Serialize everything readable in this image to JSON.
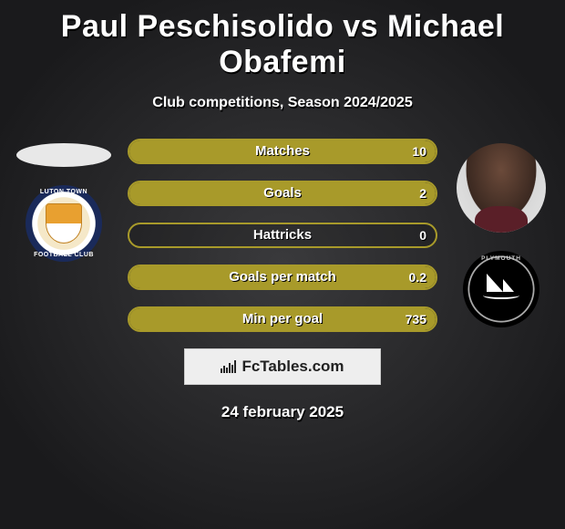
{
  "title": "Paul Peschisolido vs Michael Obafemi",
  "subtitle": "Club competitions, Season 2024/2025",
  "accent_color": "#a89a2a",
  "player_left": {
    "name": "Paul Peschisolido",
    "photo_style": "silhouette-oval",
    "club": {
      "name": "Luton Town Football Club",
      "badge_style": "luton",
      "ring_text_top": "LUTON TOWN",
      "ring_text_bottom": "FOOTBALL CLUB"
    }
  },
  "player_right": {
    "name": "Michael Obafemi",
    "photo_style": "photo-circle",
    "club": {
      "name": "Plymouth",
      "badge_style": "plymouth",
      "ring_text_top": "PLYMOUTH"
    }
  },
  "stats": [
    {
      "label": "Matches",
      "left_value": "",
      "right_value": "10",
      "left_fill_pct": 0,
      "right_fill_pct": 100
    },
    {
      "label": "Goals",
      "left_value": "",
      "right_value": "2",
      "left_fill_pct": 0,
      "right_fill_pct": 100
    },
    {
      "label": "Hattricks",
      "left_value": "",
      "right_value": "0",
      "left_fill_pct": 0,
      "right_fill_pct": 0
    },
    {
      "label": "Goals per match",
      "left_value": "",
      "right_value": "0.2",
      "left_fill_pct": 0,
      "right_fill_pct": 100
    },
    {
      "label": "Min per goal",
      "left_value": "",
      "right_value": "735",
      "left_fill_pct": 0,
      "right_fill_pct": 100
    }
  ],
  "brand": "FcTables.com",
  "date": "24 february 2025"
}
